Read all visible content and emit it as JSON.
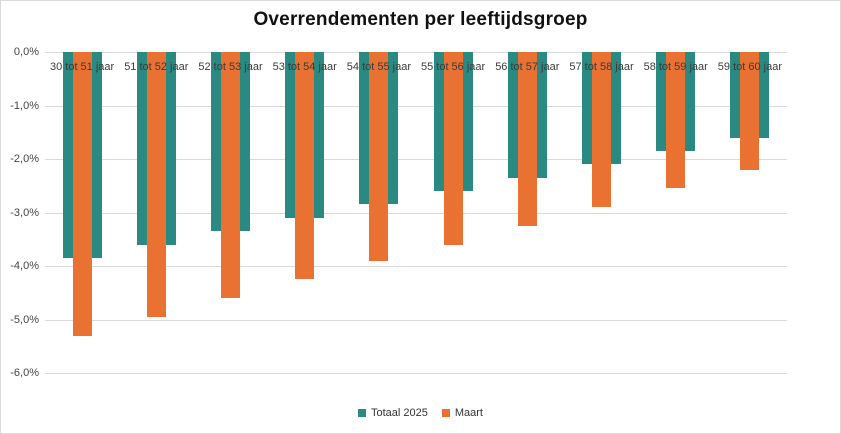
{
  "title": "Overrendementen per leeftijdsgroep",
  "colors": {
    "totaal": "#2A8A82",
    "maart": "#E97132",
    "grid": "#D9D9D9",
    "border": "#D9D9D9",
    "text": "#3B3B3B"
  },
  "chart_data": {
    "type": "bar",
    "title": "Overrendementen per leeftijdsgroep",
    "categories": [
      "30 tot 51 jaar",
      "51 tot 52 jaar",
      "52 tot 53 jaar",
      "53 tot 54 jaar",
      "54 tot 55 jaar",
      "55 tot 56 jaar",
      "56 tot 57 jaar",
      "57 tot 58 jaar",
      "58 tot 59 jaar",
      "59 tot 60 jaar"
    ],
    "series": [
      {
        "name": "Totaal 2025",
        "color": "#2A8A82",
        "values": [
          -3.85,
          -3.6,
          -3.35,
          -3.1,
          -2.85,
          -2.6,
          -2.35,
          -2.1,
          -1.85,
          -1.6
        ]
      },
      {
        "name": "Maart",
        "color": "#E97132",
        "values": [
          -5.3,
          -4.95,
          -4.6,
          -4.25,
          -3.9,
          -3.6,
          -3.25,
          -2.9,
          -2.55,
          -2.2
        ]
      }
    ],
    "ylim": [
      -6,
      0
    ],
    "ytick_step": 1,
    "ytick_labels": [
      "0,0%",
      "-1,0%",
      "-2,0%",
      "-3,0%",
      "-4,0%",
      "-5,0%",
      "-6,0%"
    ],
    "xlabel": "",
    "ylabel": "",
    "grid": true,
    "legend_position": "bottom",
    "bar_style": "overlapped"
  },
  "legend": {
    "items": [
      {
        "label": "Totaal 2025",
        "color": "#2A8A82"
      },
      {
        "label": "Maart",
        "color": "#E97132"
      }
    ]
  }
}
